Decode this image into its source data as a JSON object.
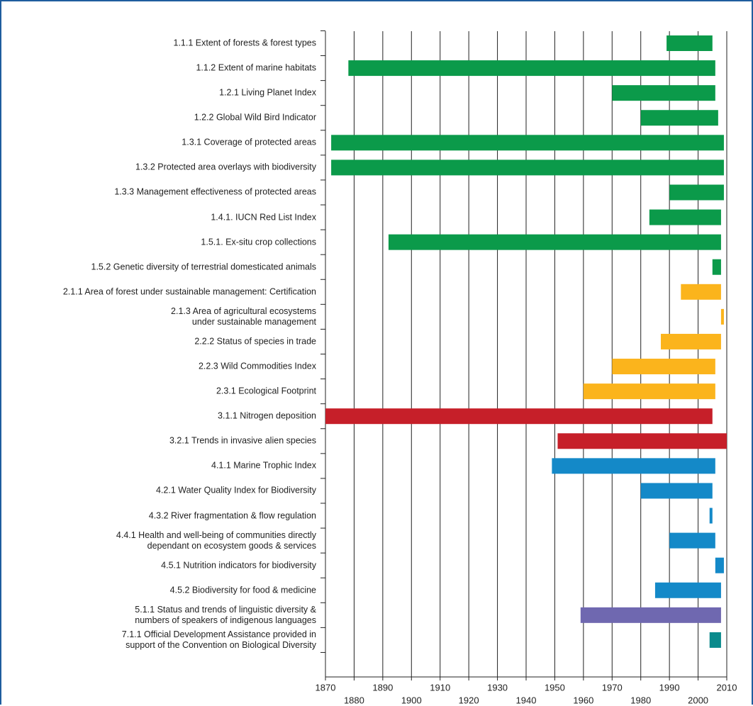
{
  "chart_data": {
    "type": "range-bar",
    "categories": [
      "1.1.1 Extent of forests & forest types",
      "1.1.2 Extent of marine habitats",
      "1.2.1 Living Planet Index",
      "1.2.2 Global Wild Bird Indicator",
      "1.3.1 Coverage of protected areas",
      "1.3.2  Protected area overlays with biodiversity",
      "1.3.3 Management effectiveness of protected areas",
      "1.4.1. IUCN Red List Index",
      "1.5.1. Ex-situ crop collections",
      "1.5.2 Genetic diversity of terrestrial domesticated animals",
      "2.1.1 Area of forest under sustainable management: Certification",
      "2.1.3 Area of agricultural ecosystems\nunder sustainable management",
      "2.2.2 Status of species in trade",
      "2.2.3 Wild Commodities Index",
      "2.3.1 Ecological Footprint",
      "3.1.1 Nitrogen deposition",
      "3.2.1 Trends in invasive alien species",
      "4.1.1 Marine Trophic Index",
      "4.2.1 Water Quality Index for Biodiversity",
      "4.3.2 River fragmentation & flow regulation",
      "4.4.1 Health and well-being of communities directly\ndependant on ecosystem goods & services",
      "4.5.1 Nutrition indicators for biodiversity",
      "4.5.2 Biodiversity for food & medicine",
      "5.1.1 Status and trends of linguistic diversity &\nnumbers of speakers of indigenous languages",
      "7.1.1 Official Development Assistance provided in\nsupport of the Convention on Biological Diversity"
    ],
    "starts": [
      1989,
      1878,
      1970,
      1980,
      1872,
      1872,
      1990,
      1983,
      1892,
      2005,
      1994,
      2008,
      1987,
      1970,
      1960,
      1870,
      1951,
      1949,
      1980,
      2004,
      1990,
      2006,
      1985,
      1959,
      2004
    ],
    "ends": [
      2005,
      2006,
      2006,
      2007,
      2009,
      2009,
      2009,
      2008,
      2008,
      2008,
      2008,
      2009,
      2008,
      2006,
      2006,
      2005,
      2010,
      2006,
      2005,
      2005,
      2006,
      2009,
      2008,
      2008,
      2008
    ],
    "colors": [
      "#0b9a4a",
      "#0b9a4a",
      "#0b9a4a",
      "#0b9a4a",
      "#0b9a4a",
      "#0b9a4a",
      "#0b9a4a",
      "#0b9a4a",
      "#0b9a4a",
      "#0b9a4a",
      "#fbb41c",
      "#fbb41c",
      "#fbb41c",
      "#fbb41c",
      "#fbb41c",
      "#c61f29",
      "#c61f29",
      "#1489c8",
      "#1489c8",
      "#1489c8",
      "#1489c8",
      "#1489c8",
      "#1489c8",
      "#6f68b0",
      "#0a8a8c"
    ],
    "xlim": [
      1870,
      2010
    ],
    "xticks": [
      1870,
      1880,
      1890,
      1900,
      1910,
      1920,
      1930,
      1940,
      1950,
      1960,
      1970,
      1980,
      1990,
      2000,
      2010
    ],
    "grid": true
  }
}
